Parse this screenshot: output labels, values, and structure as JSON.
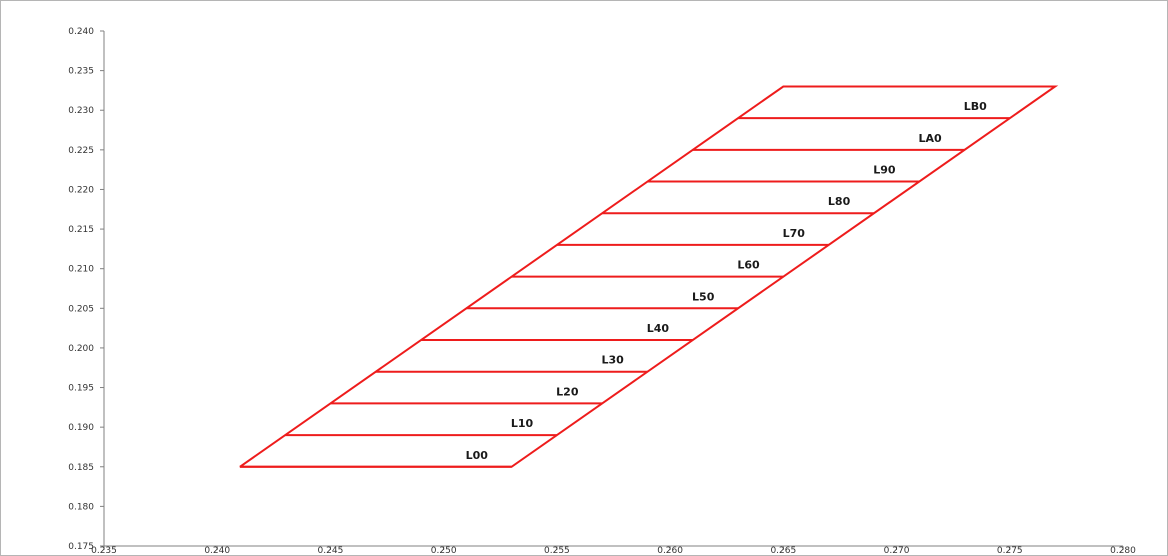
{
  "chart_data": {
    "type": "line",
    "title": "",
    "xlabel": "",
    "ylabel": "",
    "xlim": [
      0.235,
      0.28
    ],
    "ylim": [
      0.175,
      0.24
    ],
    "x_ticks": [
      "0.235",
      "0.240",
      "0.245",
      "0.250",
      "0.255",
      "0.260",
      "0.265",
      "0.270",
      "0.275",
      "0.280"
    ],
    "x_tick_values": [
      0.235,
      0.24,
      0.245,
      0.25,
      0.255,
      0.26,
      0.265,
      0.27,
      0.275,
      0.28
    ],
    "y_ticks": [
      "0.175",
      "0.180",
      "0.185",
      "0.190",
      "0.195",
      "0.200",
      "0.205",
      "0.210",
      "0.215",
      "0.220",
      "0.225",
      "0.230",
      "0.235",
      "0.240"
    ],
    "y_tick_values": [
      0.175,
      0.18,
      0.185,
      0.19,
      0.195,
      0.2,
      0.205,
      0.21,
      0.215,
      0.22,
      0.225,
      0.23,
      0.235,
      0.24
    ],
    "grid": false,
    "line_color": "#ee1c1c",
    "outline": [
      [
        0.241,
        0.185
      ],
      [
        0.253,
        0.185
      ],
      [
        0.277,
        0.233
      ],
      [
        0.265,
        0.233
      ],
      [
        0.241,
        0.185
      ]
    ],
    "bands": [
      {
        "label": "L00",
        "y": 0.185,
        "x_start": 0.241,
        "x_end": 0.253
      },
      {
        "label": "L10",
        "y": 0.189,
        "x_start": 0.243,
        "x_end": 0.255
      },
      {
        "label": "L20",
        "y": 0.193,
        "x_start": 0.245,
        "x_end": 0.257
      },
      {
        "label": "L30",
        "y": 0.197,
        "x_start": 0.247,
        "x_end": 0.259
      },
      {
        "label": "L40",
        "y": 0.201,
        "x_start": 0.249,
        "x_end": 0.261
      },
      {
        "label": "L50",
        "y": 0.205,
        "x_start": 0.251,
        "x_end": 0.263
      },
      {
        "label": "L60",
        "y": 0.209,
        "x_start": 0.253,
        "x_end": 0.265
      },
      {
        "label": "L70",
        "y": 0.213,
        "x_start": 0.255,
        "x_end": 0.267
      },
      {
        "label": "L80",
        "y": 0.217,
        "x_start": 0.257,
        "x_end": 0.269
      },
      {
        "label": "L90",
        "y": 0.221,
        "x_start": 0.259,
        "x_end": 0.271
      },
      {
        "label": "LA0",
        "y": 0.225,
        "x_start": 0.261,
        "x_end": 0.273
      },
      {
        "label": "LB0",
        "y": 0.229,
        "x_start": 0.263,
        "x_end": 0.275
      }
    ]
  }
}
